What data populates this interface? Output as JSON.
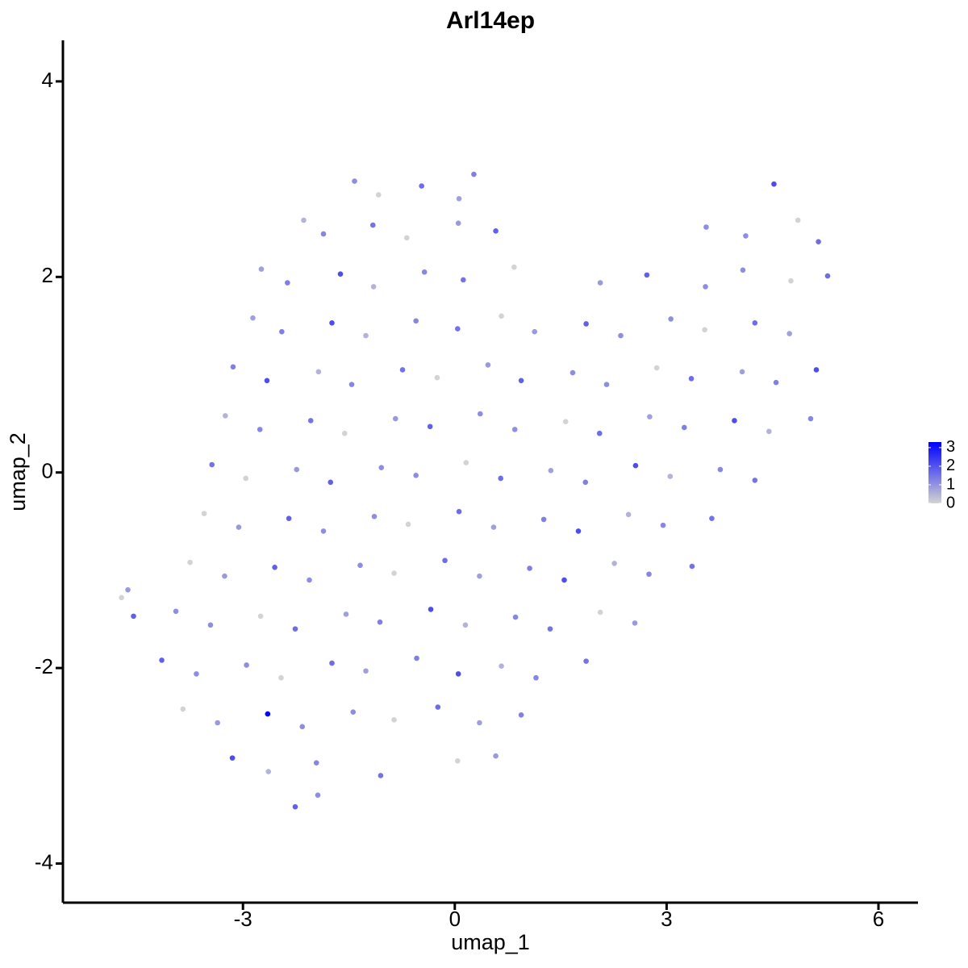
{
  "chart_data": {
    "type": "scatter",
    "title": "Arl14ep",
    "x_label": "umap_1",
    "y_label": "umap_2",
    "xlim": [
      -5.55,
      6.56
    ],
    "ylim": [
      -4.4,
      4.42
    ],
    "xticks": [
      -3,
      0,
      3,
      6
    ],
    "yticks": [
      -4,
      -2,
      0,
      2,
      4
    ],
    "grid": false,
    "x": [
      -1.42,
      -1.08,
      -0.47,
      0.06,
      0.27,
      4.52,
      -2.14,
      -1.86,
      -1.16,
      -0.68,
      0.05,
      0.58,
      3.56,
      4.12,
      4.86,
      5.15,
      -2.74,
      -2.37,
      -1.62,
      -1.15,
      -0.43,
      0.12,
      0.84,
      2.06,
      2.72,
      3.55,
      4.08,
      4.76,
      5.28,
      -2.86,
      -2.45,
      -1.74,
      -1.26,
      -0.55,
      0.04,
      0.66,
      1.13,
      1.86,
      2.35,
      3.06,
      3.54,
      4.25,
      4.74,
      -3.14,
      -2.66,
      -1.93,
      -1.46,
      -0.74,
      -0.25,
      0.47,
      0.94,
      1.67,
      2.15,
      2.86,
      3.35,
      4.07,
      4.55,
      5.12,
      -3.25,
      -2.76,
      -2.04,
      -1.56,
      -0.84,
      -0.35,
      0.36,
      0.85,
      1.57,
      2.05,
      2.76,
      3.25,
      3.96,
      4.45,
      5.04,
      -3.44,
      -2.96,
      -2.24,
      -1.76,
      -1.04,
      -0.55,
      0.16,
      0.65,
      1.36,
      1.85,
      2.56,
      3.05,
      3.76,
      4.25,
      -3.55,
      -3.06,
      -2.35,
      -1.86,
      -1.14,
      -0.66,
      0.06,
      0.55,
      1.26,
      1.75,
      2.46,
      2.95,
      3.64,
      -3.75,
      -3.26,
      -2.55,
      -2.06,
      -1.34,
      -0.86,
      -0.14,
      0.35,
      1.06,
      1.55,
      2.26,
      2.75,
      3.36,
      -4.72,
      -4.63,
      -4.55,
      -3.95,
      -3.46,
      -2.75,
      -2.26,
      -1.54,
      -1.06,
      -0.34,
      0.15,
      0.86,
      1.35,
      2.06,
      2.55,
      -4.15,
      -3.66,
      -2.95,
      -2.46,
      -1.74,
      -1.26,
      -0.54,
      0.05,
      0.66,
      1.15,
      1.86,
      -3.85,
      -3.36,
      -2.65,
      -2.16,
      -1.44,
      -0.86,
      -0.24,
      0.35,
      0.94,
      -3.15,
      -2.64,
      -1.96,
      -1.05,
      0.04,
      0.58,
      -2.26,
      -1.94
    ],
    "values": [
      2.98,
      2.84,
      2.93,
      2.8,
      3.05,
      2.95,
      2.58,
      2.44,
      2.53,
      2.4,
      2.55,
      2.47,
      2.51,
      2.42,
      2.58,
      2.36,
      2.08,
      1.94,
      2.03,
      1.9,
      2.05,
      1.97,
      2.1,
      1.94,
      2.02,
      1.9,
      2.07,
      1.96,
      2.01,
      1.58,
      1.44,
      1.53,
      1.4,
      1.55,
      1.47,
      1.6,
      1.44,
      1.52,
      1.4,
      1.57,
      1.46,
      1.53,
      1.42,
      1.08,
      0.94,
      1.03,
      0.9,
      1.05,
      0.97,
      1.1,
      0.94,
      1.02,
      0.9,
      1.07,
      0.96,
      1.03,
      0.92,
      1.05,
      0.58,
      0.44,
      0.53,
      0.4,
      0.55,
      0.47,
      0.6,
      0.44,
      0.52,
      0.4,
      0.57,
      0.46,
      0.53,
      0.42,
      0.55,
      0.08,
      -0.06,
      0.03,
      -0.1,
      0.05,
      -0.03,
      0.1,
      -0.06,
      0.02,
      -0.1,
      0.07,
      -0.04,
      0.03,
      -0.08,
      -0.42,
      -0.56,
      -0.47,
      -0.6,
      -0.45,
      -0.53,
      -0.4,
      -0.56,
      -0.48,
      -0.6,
      -0.43,
      -0.54,
      -0.47,
      -0.92,
      -1.06,
      -0.97,
      -1.1,
      -0.95,
      -1.03,
      -0.9,
      -1.06,
      -0.98,
      -1.1,
      -0.93,
      -1.04,
      -0.96,
      -1.28,
      -1.2,
      -1.47,
      -1.42,
      -1.56,
      -1.47,
      -1.6,
      -1.45,
      -1.53,
      -1.4,
      -1.56,
      -1.48,
      -1.6,
      -1.43,
      -1.54,
      -1.92,
      -2.06,
      -1.97,
      -2.1,
      -1.95,
      -2.03,
      -1.9,
      -2.06,
      -1.98,
      -2.1,
      -1.93,
      -2.42,
      -2.56,
      -2.47,
      -2.6,
      -2.45,
      -2.53,
      -2.4,
      -2.56,
      -2.48,
      -2.92,
      -3.06,
      -2.97,
      -3.1,
      -2.95,
      -2.9,
      -3.42,
      -3.3
    ],
    "expression": [
      1.1,
      0,
      1.6,
      0.8,
      1.3,
      2.1,
      0.5,
      1.2,
      1.5,
      0,
      0.9,
      1.8,
      1.1,
      1.1,
      0,
      1.6,
      0.8,
      1.3,
      2.1,
      0.5,
      1.2,
      1.5,
      0,
      0.9,
      1.8,
      1.1,
      1.1,
      0,
      1.6,
      0.8,
      1.3,
      2.1,
      0.5,
      1.2,
      1.5,
      0,
      0.9,
      1.8,
      1.1,
      1.1,
      0,
      1.6,
      0.8,
      1.3,
      2.1,
      0.5,
      1.2,
      1.5,
      0,
      0.9,
      1.8,
      1.1,
      1.1,
      0,
      1.6,
      0.8,
      1.3,
      2.1,
      0.5,
      1.2,
      1.5,
      0,
      0.9,
      1.8,
      1.1,
      1.1,
      0,
      1.6,
      0.8,
      1.3,
      2.1,
      0.5,
      1.2,
      1.5,
      0,
      0.9,
      1.8,
      1.1,
      1.1,
      0,
      1.6,
      0.8,
      1.3,
      2.1,
      0.5,
      1.2,
      1.5,
      0,
      0.9,
      1.8,
      1.1,
      1.1,
      0,
      1.6,
      0.8,
      1.3,
      2.1,
      0.5,
      1.2,
      1.5,
      0,
      0.9,
      1.8,
      1.1,
      1.1,
      0,
      1.6,
      0.8,
      1.3,
      2.1,
      0.5,
      1.2,
      1.5,
      0,
      0.9,
      1.8,
      1.1,
      1.1,
      0,
      1.6,
      0.8,
      1.3,
      2.1,
      0.5,
      1.2,
      1.5,
      0,
      0.9,
      1.8,
      1.1,
      1.1,
      0,
      1.6,
      0.8,
      1.3,
      2.1,
      0.5,
      1.2,
      1.5,
      0,
      0.9,
      3.2,
      1.1,
      1.1,
      0,
      1.6,
      0.8,
      1.3,
      2.1,
      0.5,
      1.2,
      1.5,
      0,
      0.9,
      1.8,
      1.1
    ],
    "colorbar": {
      "lim": [
        0,
        3.3
      ],
      "ticks": [
        0,
        1,
        2,
        3
      ],
      "low": "#d3d3d3",
      "high": "#0000ff"
    }
  }
}
